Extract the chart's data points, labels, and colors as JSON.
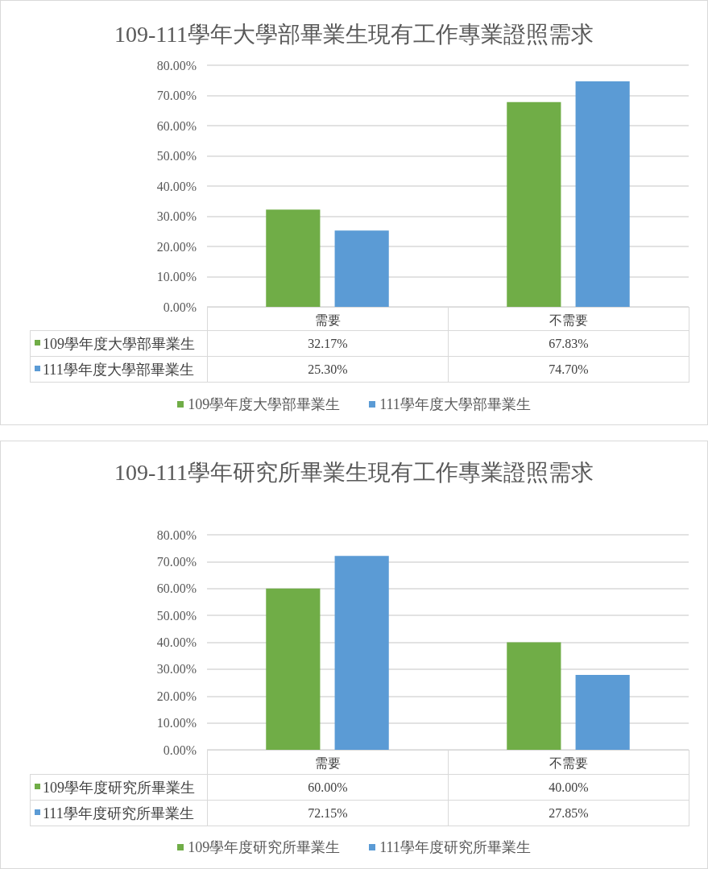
{
  "chart_data": [
    {
      "type": "bar",
      "title": "109-111學年大學部畢業生現有工作專業證照需求",
      "categories": [
        "需要",
        "不需要"
      ],
      "series": [
        {
          "name": "109學年度大學部畢業生",
          "color": "#70ad47",
          "values": [
            32.17,
            67.83
          ],
          "value_labels": [
            "32.17%",
            "67.83%"
          ]
        },
        {
          "name": "111學年度大學部畢業生",
          "color": "#5b9bd5",
          "values": [
            25.3,
            74.7
          ],
          "value_labels": [
            "25.30%",
            "74.70%"
          ]
        }
      ],
      "ylim": [
        0,
        80
      ],
      "yticks": [
        {
          "value": 0,
          "label": "0.00%"
        },
        {
          "value": 10,
          "label": "10.00%"
        },
        {
          "value": 20,
          "label": "20.00%"
        },
        {
          "value": 30,
          "label": "30.00%"
        },
        {
          "value": 40,
          "label": "40.00%"
        },
        {
          "value": 50,
          "label": "50.00%"
        },
        {
          "value": 60,
          "label": "60.00%"
        },
        {
          "value": 70,
          "label": "70.00%"
        },
        {
          "value": 80,
          "label": "80.00%"
        }
      ],
      "grid": "y",
      "legend": "bottom"
    },
    {
      "type": "bar",
      "title": "109-111學年研究所畢業生現有工作專業證照需求",
      "categories": [
        "需要",
        "不需要"
      ],
      "series": [
        {
          "name": "109學年度研究所畢業生",
          "color": "#70ad47",
          "values": [
            60,
            40
          ],
          "value_labels": [
            "60.00%",
            "40.00%"
          ]
        },
        {
          "name": "111學年度研究所畢業生",
          "color": "#5b9bd5",
          "values": [
            72.15,
            27.85
          ],
          "value_labels": [
            "72.15%",
            "27.85%"
          ]
        }
      ],
      "ylim": [
        0,
        80
      ],
      "yticks": [
        {
          "value": 0,
          "label": "0.00%"
        },
        {
          "value": 10,
          "label": "10.00%"
        },
        {
          "value": 20,
          "label": "20.00%"
        },
        {
          "value": 30,
          "label": "30.00%"
        },
        {
          "value": 40,
          "label": "40.00%"
        },
        {
          "value": 50,
          "label": "50.00%"
        },
        {
          "value": 60,
          "label": "60.00%"
        },
        {
          "value": 70,
          "label": "70.00%"
        },
        {
          "value": 80,
          "label": "80.00%"
        }
      ],
      "grid": "y",
      "legend": "bottom"
    }
  ]
}
